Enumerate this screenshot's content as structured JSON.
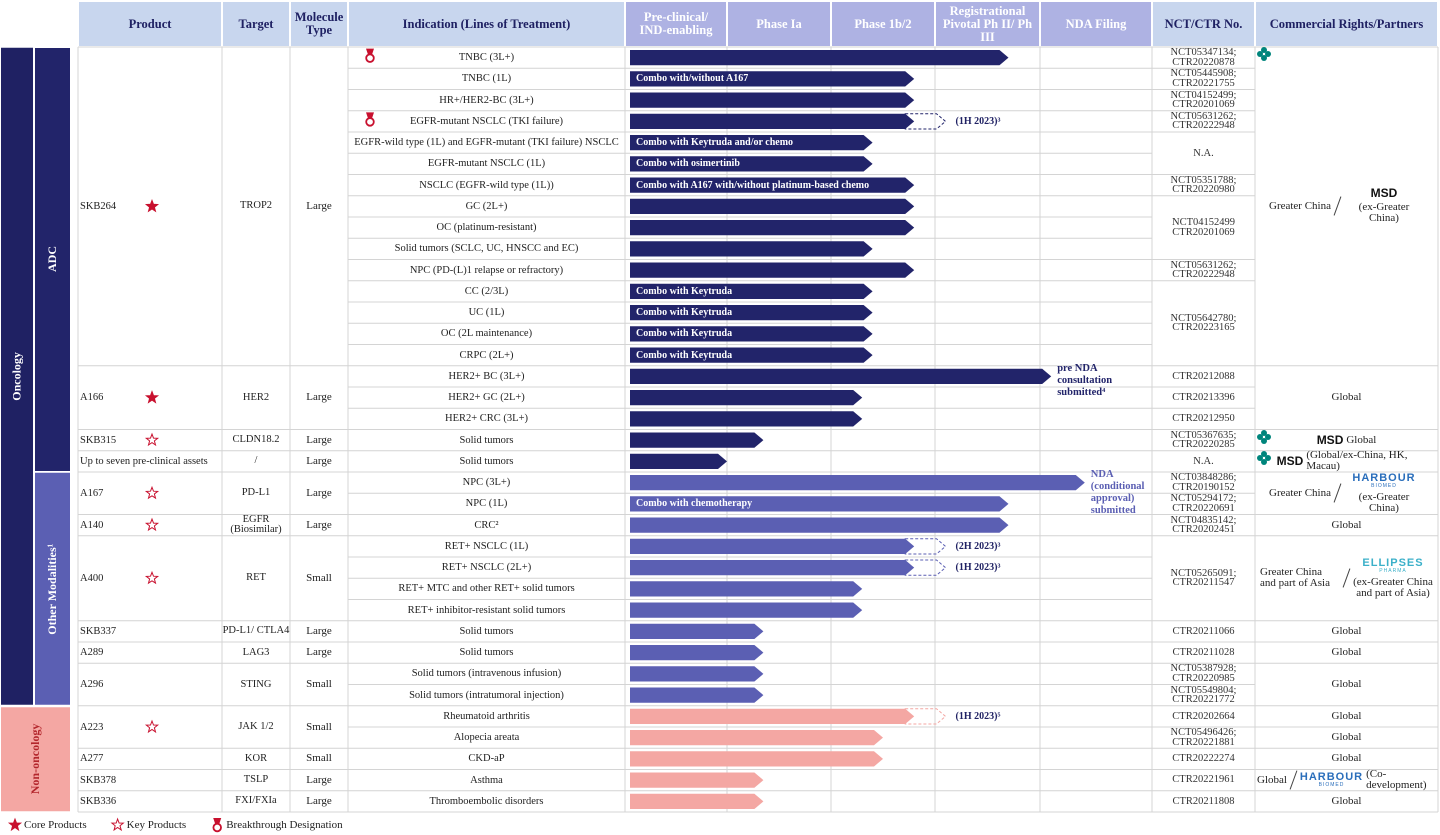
{
  "header": {
    "columns": [
      "Product",
      "Target",
      "Molecule Type",
      "Indication (Lines of Treatment)",
      "Pre-clinical/ IND-enabling",
      "Phase Ia",
      "Phase 1b/2",
      "Registrational Pivotal Ph II/ Ph III",
      "NDA Filing",
      "NCT/CTR No.",
      "Commercial Rights/Partners"
    ]
  },
  "sections": [
    {
      "label": "Oncology",
      "color": "#1f2163",
      "subsections": [
        {
          "label": "ADC",
          "color": "#22246a",
          "products": [
            {
              "name": "SKB264",
              "mark": "core",
              "target": "TROP2",
              "molecule": "Large",
              "rights": {
                "region": "Greater China",
                "partner": "MSD",
                "partner_color": "#111111",
                "partner_region": "(ex-Greater China)"
              },
              "indications": [
                {
                  "name": "TNBC (3L+)",
                  "progress": 3.7,
                  "breakthrough": true,
                  "trial": "NCT05347134; CTR20220878"
                },
                {
                  "name": "TNBC (1L)",
                  "progress": 2.8,
                  "combo": "Combo with/without A167",
                  "trial": "NCT05445908; CTR20221755"
                },
                {
                  "name": "HR+/HER2-BC (3L+)",
                  "progress": 2.8,
                  "trial": "NCT04152499; CTR20201069"
                },
                {
                  "name": "EGFR-mutant NSCLC (TKI failure)",
                  "progress": 2.8,
                  "planned": 3.1,
                  "note": "(1H 2023)³",
                  "breakthrough": true,
                  "trial": "NCT05631262; CTR20222948"
                },
                {
                  "name": "EGFR-wild type (1L) and EGFR-mutant (TKI failure) NSCLC",
                  "progress": 2.4,
                  "combo": "Combo with Keytruda and/or chemo",
                  "trial": "N.A."
                },
                {
                  "name": "EGFR-mutant NSCLC (1L)",
                  "progress": 2.4,
                  "combo": "Combo with osimertinib",
                  "trial": null
                },
                {
                  "name": "NSCLC (EGFR-wild type (1L))",
                  "progress": 2.8,
                  "combo": "Combo with A167 with/without platinum-based chemo",
                  "trial": "NCT05351788; CTR20220980"
                },
                {
                  "name": "GC (2L+)",
                  "progress": 2.8,
                  "trial": "NCT04152499 CTR20201069"
                },
                {
                  "name": "OC (platinum-resistant)",
                  "progress": 2.8,
                  "trial": null
                },
                {
                  "name": "Solid tumors (SCLC, UC, HNSCC and EC)",
                  "progress": 2.4,
                  "trial": null
                },
                {
                  "name": "NPC (PD-(L)1 relapse or refractory)",
                  "progress": 2.8,
                  "trial": "NCT05631262; CTR20222948"
                },
                {
                  "name": "CC (2/3L)",
                  "progress": 2.4,
                  "combo": "Combo with Keytruda",
                  "trial": "NCT05642780; CTR20223165"
                },
                {
                  "name": "UC (1L)",
                  "progress": 2.4,
                  "combo": "Combo with Keytruda",
                  "trial": null
                },
                {
                  "name": "OC (2L maintenance)",
                  "progress": 2.4,
                  "combo": "Combo with Keytruda",
                  "trial": null
                },
                {
                  "name": "CRPC (2L+)",
                  "progress": 2.4,
                  "combo": "Combo with Keytruda",
                  "trial": null
                }
              ]
            },
            {
              "name": "A166",
              "mark": "core",
              "target": "HER2",
              "molecule": "Large",
              "rights": {
                "region": "Global"
              },
              "indications": [
                {
                  "name": "HER2+ BC (3L+)",
                  "progress": 4.1,
                  "note": "pre NDA consultation submitted⁴",
                  "trial": "CTR20212088"
                },
                {
                  "name": "HER2+ GC (2L+)",
                  "progress": 2.3,
                  "trial": "CTR20213396"
                },
                {
                  "name": "HER2+ CRC (3L+)",
                  "progress": 2.3,
                  "trial": "CTR20212950"
                }
              ]
            },
            {
              "name": "SKB315",
              "mark": "key",
              "target": "CLDN18.2",
              "molecule": "Large",
              "rights": {
                "partner": "MSD",
                "partner_color": "#111111",
                "partner_region": "Global"
              },
              "indications": [
                {
                  "name": "Solid tumors",
                  "progress": 1.35,
                  "trial": "NCT05367635; CTR20220285"
                }
              ]
            },
            {
              "name": "Up to seven pre-clinical assets",
              "target": "/",
              "molecule": "Large",
              "rights": {
                "partner": "MSD",
                "partner_color": "#111111",
                "partner_region": "(Global/ex-China, HK, Macau)"
              },
              "indications": [
                {
                  "name": "Solid tumors",
                  "progress": 1.0,
                  "trial": "N.A."
                }
              ]
            }
          ]
        },
        {
          "label": "Other Modalities¹",
          "color": "#5b5fb3",
          "products": [
            {
              "name": "A167",
              "mark": "key",
              "target": "PD-L1",
              "molecule": "Large",
              "rights": {
                "region": "Greater China",
                "partner": "HARBOUR",
                "partner_sub": "BIOMED",
                "partner_color": "#2a6ebb",
                "partner_region": "(ex-Greater China)"
              },
              "indications": [
                {
                  "name": "NPC (3L+)",
                  "progress": 4.4,
                  "note": "NDA (conditional approval) submitted",
                  "trial": "NCT03848286; CTR20190152"
                },
                {
                  "name": "NPC (1L)",
                  "progress": 3.7,
                  "combo": "Combo with chemotherapy",
                  "trial": "NCT05294172; CTR20220691"
                }
              ]
            },
            {
              "name": "A140",
              "mark": "key",
              "target": "EGFR (Biosimilar)",
              "molecule": "Large",
              "rights": {
                "region": "Global"
              },
              "indications": [
                {
                  "name": "CRC²",
                  "progress": 3.7,
                  "trial": "NCT04835142; CTR20202451"
                }
              ]
            },
            {
              "name": "A400",
              "mark": "key",
              "target": "RET",
              "molecule": "Small",
              "rights": {
                "region": "Greater China and part of Asia",
                "partner": "ELLIPSES",
                "partner_sub": "PHARMA",
                "partner_color": "#3bb0c9",
                "partner_region": "(ex-Greater China and part of Asia)"
              },
              "indications": [
                {
                  "name": "RET+ NSCLC (1L)",
                  "progress": 2.8,
                  "planned": 3.1,
                  "note": "(2H 2023)³",
                  "trial": "NCT05265091; CTR20211547"
                },
                {
                  "name": "RET+ NSCLC (2L+)",
                  "progress": 2.8,
                  "planned": 3.1,
                  "note": "(1H 2023)³",
                  "trial": null
                },
                {
                  "name": "RET+ MTC and other RET+ solid tumors",
                  "progress": 2.3,
                  "trial": null
                },
                {
                  "name": "RET+ inhibitor-resistant solid tumors",
                  "progress": 2.3,
                  "trial": null
                }
              ]
            },
            {
              "name": "SKB337",
              "target": "PD-L1/ CTLA4",
              "molecule": "Large",
              "rights": {
                "region": "Global"
              },
              "indications": [
                {
                  "name": "Solid tumors",
                  "progress": 1.35,
                  "trial": "CTR20211066"
                }
              ]
            },
            {
              "name": "A289",
              "target": "LAG3",
              "molecule": "Large",
              "rights": {
                "region": "Global"
              },
              "indications": [
                {
                  "name": "Solid tumors",
                  "progress": 1.35,
                  "trial": "CTR20211028"
                }
              ]
            },
            {
              "name": "A296",
              "target": "STING",
              "molecule": "Small",
              "rights": {
                "region": "Global"
              },
              "indications": [
                {
                  "name": "Solid tumors (intravenous infusion)",
                  "progress": 1.35,
                  "trial": "NCT05387928; CTR20220985"
                },
                {
                  "name": "Solid tumors (intratumoral injection)",
                  "progress": 1.35,
                  "trial": "NCT05549804; CTR20221772"
                }
              ]
            }
          ]
        }
      ]
    },
    {
      "label": "Non-oncology",
      "color": "#f4a7a3",
      "products": [
        {
          "name": "A223",
          "mark": "key",
          "target": "JAK 1/2",
          "molecule": "Small",
          "indications": [
            {
              "name": "Rheumatoid arthritis",
              "progress": 2.8,
              "planned": 3.1,
              "note": "(1H 2023)⁵",
              "trial": "CTR20202664",
              "rights": {
                "region": "Global"
              }
            },
            {
              "name": "Alopecia areata",
              "progress": 2.5,
              "trial": "NCT05496426; CTR20221881",
              "rights": {
                "region": "Global"
              }
            }
          ]
        },
        {
          "name": "A277",
          "target": "KOR",
          "molecule": "Small",
          "rights": {
            "region": "Global"
          },
          "indications": [
            {
              "name": "CKD-aP",
              "progress": 2.5,
              "trial": "CTR20222274"
            }
          ]
        },
        {
          "name": "SKB378",
          "target": "TSLP",
          "molecule": "Large",
          "rights": {
            "region": "Global",
            "partner": "HARBOUR",
            "partner_sub": "BIOMED",
            "partner_color": "#2a6ebb",
            "partner_region": "(Co-development)"
          },
          "indications": [
            {
              "name": "Asthma",
              "progress": 1.35,
              "trial": "CTR20221961"
            }
          ]
        },
        {
          "name": "SKB336",
          "target": "FXI/FXIa",
          "molecule": "Large",
          "rights": {
            "region": "Global"
          },
          "indications": [
            {
              "name": "Thromboembolic disorders",
              "progress": 1.35,
              "trial": "CTR20211808"
            }
          ]
        }
      ]
    }
  ],
  "legend": [
    {
      "mark": "core",
      "label": "Core Products"
    },
    {
      "mark": "key",
      "label": "Key Products"
    },
    {
      "mark": "breakthrough",
      "label": "Breakthrough Designation"
    }
  ]
}
